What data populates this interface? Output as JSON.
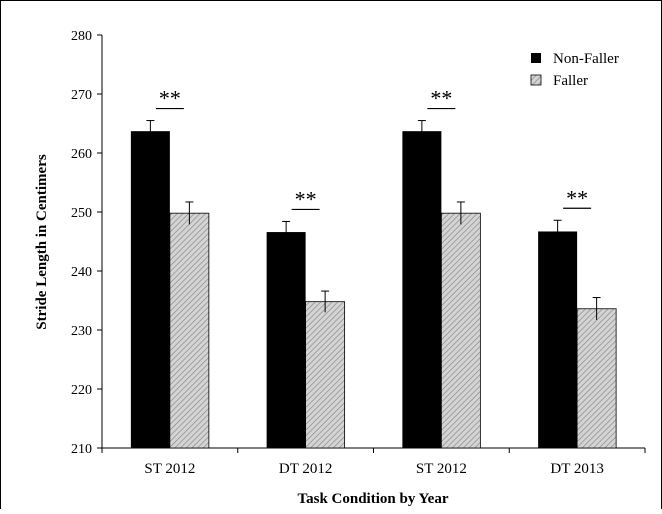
{
  "chart_data": {
    "type": "bar",
    "title": "",
    "xlabel": "Task Condition by Year",
    "ylabel": "Stride Length in Centimers",
    "categories": [
      "ST 2012",
      "DT 2012",
      "ST 2012",
      "DT 2013"
    ],
    "ylim": [
      210,
      280
    ],
    "yticks": [
      210,
      220,
      230,
      240,
      250,
      260,
      270,
      280
    ],
    "grid": false,
    "legend_position": "top-right",
    "series": [
      {
        "name": "Non-Faller",
        "color": "#000000",
        "pattern": "solid",
        "values": [
          263.7,
          246.6,
          263.7,
          246.7
        ],
        "errors": [
          1.8,
          1.8,
          1.8,
          1.9
        ]
      },
      {
        "name": "Faller",
        "color": "#bdbdbd",
        "pattern": "diagonal-hatch",
        "values": [
          249.8,
          234.8,
          249.8,
          233.6
        ],
        "errors": [
          1.9,
          1.8,
          1.9,
          1.9
        ]
      }
    ],
    "annotations": [
      "**",
      "**",
      "**",
      "**"
    ]
  }
}
